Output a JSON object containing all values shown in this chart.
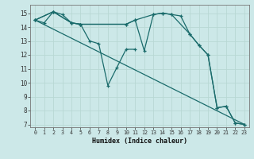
{
  "xlabel": "Humidex (Indice chaleur)",
  "xlim": [
    -0.5,
    23.5
  ],
  "ylim": [
    6.8,
    15.6
  ],
  "yticks": [
    7,
    8,
    9,
    10,
    11,
    12,
    13,
    14,
    15
  ],
  "xticks": [
    0,
    1,
    2,
    3,
    4,
    5,
    6,
    7,
    8,
    9,
    10,
    11,
    12,
    13,
    14,
    15,
    16,
    17,
    18,
    19,
    20,
    21,
    22,
    23
  ],
  "bg_color": "#cce8e8",
  "grid_color": "#b8d8d4",
  "line_color": "#1a6b6b",
  "series": [
    {
      "x": [
        0,
        23
      ],
      "y": [
        14.5,
        7.0
      ],
      "marker": false
    },
    {
      "x": [
        0,
        1,
        2,
        3,
        4,
        5,
        6,
        7,
        8,
        9,
        10,
        11
      ],
      "y": [
        14.5,
        14.3,
        15.1,
        14.9,
        14.3,
        14.2,
        13.0,
        12.8,
        9.8,
        11.1,
        12.4,
        12.4
      ],
      "marker": true
    },
    {
      "x": [
        0,
        2,
        4,
        5,
        10,
        11,
        12,
        13,
        14,
        15,
        16,
        17,
        18,
        19,
        20,
        21,
        22,
        23
      ],
      "y": [
        14.5,
        15.1,
        14.3,
        14.2,
        14.2,
        14.5,
        12.3,
        14.9,
        15.0,
        14.9,
        14.8,
        13.5,
        12.7,
        12.0,
        8.2,
        8.3,
        7.1,
        7.0
      ],
      "marker": true
    },
    {
      "x": [
        0,
        2,
        4,
        5,
        10,
        11,
        13,
        14,
        15,
        17,
        18,
        19,
        20,
        21,
        22,
        23
      ],
      "y": [
        14.5,
        15.1,
        14.3,
        14.2,
        14.2,
        14.5,
        14.9,
        15.0,
        14.9,
        13.5,
        12.7,
        12.0,
        8.2,
        8.3,
        7.1,
        7.0
      ],
      "marker": true
    }
  ]
}
